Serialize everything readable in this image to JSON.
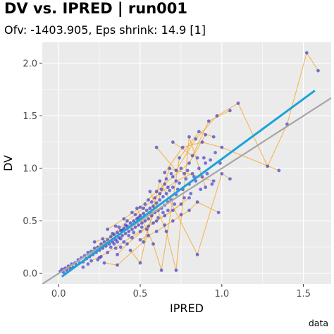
{
  "chart_data": {
    "type": "scatter",
    "title": "DV vs. IPRED | run001",
    "subtitle": "Ofv: -1403.905, Eps shrink: 14.9 [1]",
    "xlabel": "IPRED",
    "ylabel": "DV",
    "caption": "data",
    "xlim": [
      -0.1,
      1.67
    ],
    "ylim": [
      -0.1,
      2.2
    ],
    "x_ticks": [
      0.0,
      0.5,
      1.0,
      1.5
    ],
    "x_tick_labels": [
      "0.0",
      "0.5",
      "1.0",
      "1.5"
    ],
    "y_ticks": [
      0.0,
      0.5,
      1.0,
      1.5,
      2.0
    ],
    "y_tick_labels": [
      "0.0",
      "0.5",
      "1.0",
      "1.5",
      "2.0"
    ],
    "grid": true,
    "legend": "none",
    "identity_line": {
      "slope": 1,
      "intercept": 0
    },
    "regression_line": {
      "x": [
        0.02,
        1.57
      ],
      "y": [
        -0.03,
        1.74
      ]
    },
    "colors": {
      "points": "#3333cc",
      "individual_lines": "#f5a623",
      "identity_line": "#a6a6a6",
      "regression_line": "#1aa3d9",
      "panel_background": "#ebebeb",
      "grid": "#ffffff"
    },
    "points": [
      [
        0.01,
        0.02
      ],
      [
        0.02,
        0.04
      ],
      [
        0.03,
        0.01
      ],
      [
        0.04,
        0.05
      ],
      [
        0.05,
        0.03
      ],
      [
        0.06,
        0.07
      ],
      [
        0.07,
        0.05
      ],
      [
        0.08,
        0.09
      ],
      [
        0.09,
        0.06
      ],
      [
        0.1,
        0.1
      ],
      [
        0.11,
        0.08
      ],
      [
        0.12,
        0.13
      ],
      [
        0.13,
        0.1
      ],
      [
        0.14,
        0.15
      ],
      [
        0.15,
        0.11
      ],
      [
        0.16,
        0.17
      ],
      [
        0.17,
        0.14
      ],
      [
        0.18,
        0.2
      ],
      [
        0.19,
        0.16
      ],
      [
        0.2,
        0.21
      ],
      [
        0.21,
        0.18
      ],
      [
        0.22,
        0.24
      ],
      [
        0.23,
        0.2
      ],
      [
        0.24,
        0.25
      ],
      [
        0.25,
        0.22
      ],
      [
        0.26,
        0.28
      ],
      [
        0.27,
        0.24
      ],
      [
        0.28,
        0.3
      ],
      [
        0.29,
        0.26
      ],
      [
        0.3,
        0.32
      ],
      [
        0.31,
        0.28
      ],
      [
        0.32,
        0.35
      ],
      [
        0.33,
        0.3
      ],
      [
        0.34,
        0.37
      ],
      [
        0.35,
        0.32
      ],
      [
        0.36,
        0.39
      ],
      [
        0.37,
        0.34
      ],
      [
        0.38,
        0.41
      ],
      [
        0.39,
        0.36
      ],
      [
        0.4,
        0.43
      ],
      [
        0.41,
        0.38
      ],
      [
        0.42,
        0.45
      ],
      [
        0.43,
        0.4
      ],
      [
        0.44,
        0.48
      ],
      [
        0.45,
        0.42
      ],
      [
        0.46,
        0.5
      ],
      [
        0.47,
        0.44
      ],
      [
        0.48,
        0.52
      ],
      [
        0.49,
        0.46
      ],
      [
        0.5,
        0.55
      ],
      [
        0.51,
        0.48
      ],
      [
        0.52,
        0.57
      ],
      [
        0.53,
        0.5
      ],
      [
        0.54,
        0.6
      ],
      [
        0.55,
        0.52
      ],
      [
        0.56,
        0.62
      ],
      [
        0.57,
        0.55
      ],
      [
        0.58,
        0.64
      ],
      [
        0.59,
        0.58
      ],
      [
        0.6,
        0.67
      ],
      [
        0.61,
        0.6
      ],
      [
        0.62,
        0.7
      ],
      [
        0.63,
        0.62
      ],
      [
        0.64,
        0.73
      ],
      [
        0.65,
        0.65
      ],
      [
        0.66,
        0.76
      ],
      [
        0.67,
        0.68
      ],
      [
        0.68,
        0.79
      ],
      [
        0.69,
        0.7
      ],
      [
        0.7,
        0.82
      ],
      [
        0.72,
        0.75
      ],
      [
        0.74,
        0.86
      ],
      [
        0.76,
        0.8
      ],
      [
        0.78,
        0.9
      ],
      [
        0.8,
        0.85
      ],
      [
        0.82,
        0.95
      ],
      [
        0.84,
        0.88
      ],
      [
        0.86,
        1.0
      ],
      [
        0.88,
        0.92
      ],
      [
        0.9,
        1.05
      ],
      [
        0.2,
        0.12
      ],
      [
        0.22,
        0.3
      ],
      [
        0.25,
        0.15
      ],
      [
        0.27,
        0.33
      ],
      [
        0.3,
        0.2
      ],
      [
        0.33,
        0.38
      ],
      [
        0.35,
        0.24
      ],
      [
        0.37,
        0.44
      ],
      [
        0.4,
        0.3
      ],
      [
        0.42,
        0.5
      ],
      [
        0.45,
        0.34
      ],
      [
        0.47,
        0.56
      ],
      [
        0.5,
        0.4
      ],
      [
        0.52,
        0.62
      ],
      [
        0.55,
        0.45
      ],
      [
        0.57,
        0.68
      ],
      [
        0.6,
        0.5
      ],
      [
        0.62,
        0.76
      ],
      [
        0.65,
        0.55
      ],
      [
        0.67,
        0.82
      ],
      [
        0.7,
        0.6
      ],
      [
        0.72,
        0.88
      ],
      [
        0.75,
        0.66
      ],
      [
        0.77,
        0.95
      ],
      [
        0.8,
        0.72
      ],
      [
        0.3,
        0.42
      ],
      [
        0.35,
        0.45
      ],
      [
        0.4,
        0.52
      ],
      [
        0.45,
        0.58
      ],
      [
        0.5,
        0.63
      ],
      [
        0.55,
        0.7
      ],
      [
        0.6,
        0.78
      ],
      [
        0.65,
        0.85
      ],
      [
        0.7,
        0.92
      ],
      [
        0.75,
        1.0
      ],
      [
        0.8,
        1.05
      ],
      [
        0.85,
        1.1
      ],
      [
        0.5,
        0.32
      ],
      [
        0.55,
        0.36
      ],
      [
        0.6,
        0.4
      ],
      [
        0.65,
        0.46
      ],
      [
        0.7,
        0.5
      ],
      [
        0.75,
        0.56
      ],
      [
        0.8,
        0.6
      ],
      [
        0.85,
        0.68
      ],
      [
        0.28,
        0.1
      ],
      [
        0.36,
        0.18
      ],
      [
        0.44,
        0.22
      ],
      [
        0.52,
        0.3
      ],
      [
        0.58,
        0.28
      ],
      [
        0.66,
        0.4
      ],
      [
        0.42,
        0.28
      ],
      [
        0.48,
        0.62
      ],
      [
        0.56,
        0.78
      ],
      [
        0.62,
        0.88
      ],
      [
        0.68,
        1.0
      ],
      [
        0.74,
        1.1
      ],
      [
        0.38,
        0.25
      ],
      [
        0.6,
        1.2
      ],
      [
        0.65,
        0.96
      ],
      [
        0.7,
        1.25
      ],
      [
        0.72,
        0.98
      ],
      [
        0.76,
        1.2
      ],
      [
        0.8,
        1.3
      ],
      [
        0.82,
        1.12
      ],
      [
        0.84,
        1.28
      ],
      [
        0.86,
        1.35
      ],
      [
        0.88,
        1.25
      ],
      [
        0.9,
        1.32
      ],
      [
        0.92,
        1.45
      ],
      [
        0.95,
        1.3
      ],
      [
        0.97,
        1.5
      ],
      [
        1.0,
        1.2
      ],
      [
        1.05,
        1.55
      ],
      [
        1.1,
        1.62
      ],
      [
        0.9,
        0.82
      ],
      [
        0.95,
        0.88
      ],
      [
        1.0,
        0.95
      ],
      [
        1.05,
        0.9
      ],
      [
        0.98,
        0.58
      ],
      [
        0.85,
        0.18
      ],
      [
        0.5,
        0.1
      ],
      [
        0.63,
        0.03
      ],
      [
        0.72,
        0.03
      ],
      [
        0.36,
        0.08
      ],
      [
        1.28,
        1.02
      ],
      [
        1.35,
        0.98
      ],
      [
        1.4,
        1.42
      ],
      [
        1.52,
        2.1
      ],
      [
        1.59,
        1.93
      ],
      [
        0.15,
        0.06
      ],
      [
        0.18,
        0.09
      ],
      [
        0.24,
        0.13
      ],
      [
        0.26,
        0.16
      ],
      [
        0.32,
        0.25
      ],
      [
        0.34,
        0.28
      ],
      [
        0.36,
        0.3
      ],
      [
        0.38,
        0.33
      ],
      [
        0.39,
        0.41
      ],
      [
        0.41,
        0.46
      ],
      [
        0.43,
        0.36
      ],
      [
        0.46,
        0.39
      ],
      [
        0.49,
        0.53
      ],
      [
        0.51,
        0.44
      ],
      [
        0.53,
        0.66
      ],
      [
        0.54,
        0.42
      ],
      [
        0.56,
        0.58
      ],
      [
        0.58,
        0.48
      ],
      [
        0.59,
        0.72
      ],
      [
        0.61,
        0.53
      ],
      [
        0.63,
        0.8
      ],
      [
        0.64,
        0.58
      ],
      [
        0.66,
        0.9
      ],
      [
        0.67,
        0.6
      ],
      [
        0.69,
        0.95
      ],
      [
        0.71,
        0.66
      ],
      [
        0.73,
        0.8
      ],
      [
        0.77,
        0.72
      ],
      [
        0.79,
        0.98
      ],
      [
        0.81,
        0.76
      ],
      [
        0.83,
        0.92
      ],
      [
        0.87,
        0.8
      ],
      [
        0.89,
        1.1
      ],
      [
        0.91,
        0.95
      ],
      [
        0.93,
        1.08
      ],
      [
        0.94,
        0.85
      ],
      [
        0.96,
        1.15
      ],
      [
        0.99,
        1.05
      ]
    ],
    "individual_lines": [
      [
        [
          0.02,
          0.04
        ],
        [
          0.1,
          0.1
        ],
        [
          0.2,
          0.21
        ],
        [
          0.3,
          0.32
        ],
        [
          0.4,
          0.43
        ],
        [
          0.5,
          0.55
        ],
        [
          0.6,
          0.67
        ]
      ],
      [
        [
          0.05,
          0.03
        ],
        [
          0.15,
          0.11
        ],
        [
          0.25,
          0.22
        ],
        [
          0.35,
          0.32
        ],
        [
          0.45,
          0.42
        ],
        [
          0.55,
          0.52
        ],
        [
          0.65,
          0.65
        ]
      ],
      [
        [
          0.2,
          0.12
        ],
        [
          0.3,
          0.2
        ],
        [
          0.4,
          0.3
        ],
        [
          0.5,
          0.4
        ],
        [
          0.6,
          0.5
        ],
        [
          0.7,
          0.6
        ],
        [
          0.8,
          0.72
        ]
      ],
      [
        [
          0.22,
          0.3
        ],
        [
          0.32,
          0.35
        ],
        [
          0.42,
          0.5
        ],
        [
          0.52,
          0.62
        ],
        [
          0.62,
          0.76
        ],
        [
          0.72,
          0.88
        ],
        [
          0.82,
          0.95
        ]
      ],
      [
        [
          0.3,
          0.42
        ],
        [
          0.4,
          0.52
        ],
        [
          0.5,
          0.63
        ],
        [
          0.6,
          0.78
        ],
        [
          0.7,
          0.92
        ],
        [
          0.8,
          1.05
        ],
        [
          0.9,
          1.32
        ]
      ],
      [
        [
          0.5,
          0.32
        ],
        [
          0.6,
          0.4
        ],
        [
          0.7,
          0.5
        ],
        [
          0.8,
          0.6
        ],
        [
          0.85,
          0.68
        ],
        [
          0.98,
          0.58
        ]
      ],
      [
        [
          0.6,
          1.2
        ],
        [
          0.72,
          0.98
        ],
        [
          0.84,
          1.28
        ],
        [
          0.97,
          1.5
        ],
        [
          1.1,
          1.62
        ],
        [
          1.28,
          1.02
        ],
        [
          1.4,
          1.42
        ],
        [
          1.52,
          2.1
        ],
        [
          1.59,
          1.93
        ]
      ],
      [
        [
          0.65,
          0.96
        ],
        [
          0.76,
          1.2
        ],
        [
          0.88,
          1.25
        ],
        [
          1.0,
          1.2
        ],
        [
          1.35,
          0.98
        ]
      ],
      [
        [
          0.7,
          1.25
        ],
        [
          0.82,
          1.12
        ],
        [
          0.92,
          1.45
        ],
        [
          1.05,
          1.55
        ]
      ],
      [
        [
          0.48,
          0.62
        ],
        [
          0.58,
          0.28
        ],
        [
          0.63,
          0.03
        ],
        [
          0.74,
          1.1
        ],
        [
          0.86,
          1.35
        ],
        [
          0.95,
          1.3
        ]
      ],
      [
        [
          0.56,
          0.78
        ],
        [
          0.66,
          0.4
        ],
        [
          0.72,
          0.03
        ],
        [
          0.8,
          1.3
        ],
        [
          0.9,
          0.82
        ]
      ],
      [
        [
          0.44,
          0.22
        ],
        [
          0.5,
          0.1
        ],
        [
          0.62,
          0.88
        ],
        [
          0.85,
          0.18
        ],
        [
          1.0,
          0.95
        ],
        [
          1.05,
          0.9
        ]
      ],
      [
        [
          0.28,
          0.1
        ],
        [
          0.36,
          0.08
        ],
        [
          0.52,
          0.3
        ],
        [
          0.68,
          1.0
        ],
        [
          0.95,
          0.88
        ]
      ],
      [
        [
          0.36,
          0.18
        ],
        [
          0.42,
          0.28
        ],
        [
          0.55,
          0.45
        ],
        [
          0.65,
          0.55
        ],
        [
          0.75,
          0.66
        ]
      ]
    ]
  }
}
